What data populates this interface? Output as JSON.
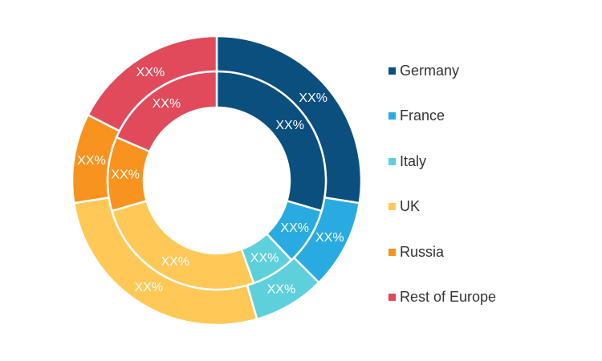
{
  "chart_data": {
    "type": "pie",
    "title": "",
    "categories": [
      "Germany",
      "France",
      "Italy",
      "UK",
      "Russia",
      "Rest of Europe"
    ],
    "colors": {
      "Germany": "#0b4f7f",
      "France": "#29abe2",
      "Italy": "#5dd0dc",
      "UK": "#ffc857",
      "Russia": "#f7931e",
      "Rest of Europe": "#e04a5a"
    },
    "series": [
      {
        "ring": "outer",
        "values": [
          27.5,
          10.0,
          8.0,
          27.0,
          10.0,
          17.5
        ],
        "labels": [
          "XX%",
          "XX%",
          "XX%",
          "XX%",
          "XX%",
          "XX%"
        ]
      },
      {
        "ring": "inner",
        "values": [
          29.5,
          8.5,
          6.5,
          26.0,
          11.0,
          18.5
        ],
        "labels": [
          "XX%",
          "XX%",
          "XX%",
          "XX%",
          "XX%",
          "XX%"
        ]
      }
    ],
    "legend": {
      "position": "right",
      "items": [
        "Germany",
        "France",
        "Italy",
        "UK",
        "Russia",
        "Rest of Europe"
      ]
    }
  }
}
